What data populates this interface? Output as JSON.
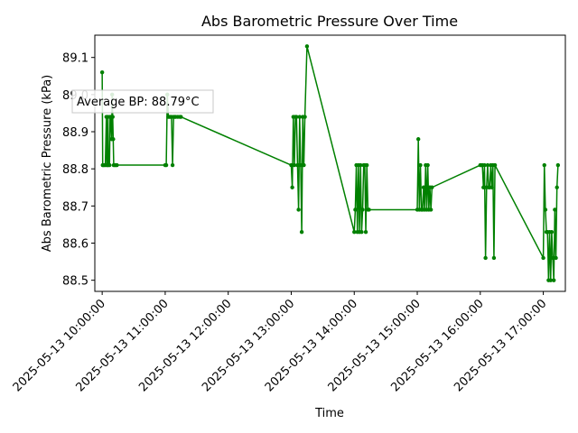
{
  "chart_data": {
    "type": "line",
    "title": "Abs Barometric Pressure Over Time",
    "xlabel": "Time",
    "ylabel": "Abs Barometric Pressure (kPa)",
    "annotation": "Average BP: 88.79°C",
    "x_unit": "time",
    "xlim": [
      "2025-05-13 09:53:00",
      "2025-05-13 17:21:00"
    ],
    "ylim": [
      88.47,
      89.16
    ],
    "x_ticks": [
      "2025-05-13 10:00:00",
      "2025-05-13 11:00:00",
      "2025-05-13 12:00:00",
      "2025-05-13 13:00:00",
      "2025-05-13 14:00:00",
      "2025-05-13 15:00:00",
      "2025-05-13 16:00:00",
      "2025-05-13 17:00:00"
    ],
    "y_ticks": [
      "88.5",
      "88.6",
      "88.7",
      "88.8",
      "88.9",
      "89.0",
      "89.1"
    ],
    "series": [
      {
        "color": "#008000",
        "marker": "circle",
        "x": [
          "2025-05-13 10:00:00",
          "2025-05-13 10:00:30",
          "2025-05-13 10:01:00",
          "2025-05-13 10:02:00",
          "2025-05-13 10:03:00",
          "2025-05-13 10:04:00",
          "2025-05-13 10:04:30",
          "2025-05-13 10:05:00",
          "2025-05-13 10:05:30",
          "2025-05-13 10:06:00",
          "2025-05-13 10:07:00",
          "2025-05-13 10:07:30",
          "2025-05-13 10:08:00",
          "2025-05-13 10:09:00",
          "2025-05-13 10:09:30",
          "2025-05-13 10:10:00",
          "2025-05-13 10:10:30",
          "2025-05-13 10:11:00",
          "2025-05-13 10:12:00",
          "2025-05-13 10:13:00",
          "2025-05-13 10:14:00",
          "2025-05-13 11:00:00",
          "2025-05-13 11:01:00",
          "2025-05-13 11:02:00",
          "2025-05-13 11:03:00",
          "2025-05-13 11:04:00",
          "2025-05-13 11:05:00",
          "2025-05-13 11:06:00",
          "2025-05-13 11:07:00",
          "2025-05-13 11:08:00",
          "2025-05-13 11:09:00",
          "2025-05-13 11:10:00",
          "2025-05-13 11:12:00",
          "2025-05-13 11:14:00",
          "2025-05-13 11:15:00",
          "2025-05-13 13:00:00",
          "2025-05-13 13:01:00",
          "2025-05-13 13:02:00",
          "2025-05-13 13:03:00",
          "2025-05-13 13:04:00",
          "2025-05-13 13:05:00",
          "2025-05-13 13:06:00",
          "2025-05-13 13:07:00",
          "2025-05-13 13:08:00",
          "2025-05-13 13:09:00",
          "2025-05-13 13:10:00",
          "2025-05-13 13:11:00",
          "2025-05-13 13:12:00",
          "2025-05-13 13:13:00",
          "2025-05-13 13:15:00",
          "2025-05-13 14:00:00",
          "2025-05-13 14:01:00",
          "2025-05-13 14:02:00",
          "2025-05-13 14:03:00",
          "2025-05-13 14:04:00",
          "2025-05-13 14:05:00",
          "2025-05-13 14:06:00",
          "2025-05-13 14:07:00",
          "2025-05-13 14:08:00",
          "2025-05-13 14:09:00",
          "2025-05-13 14:10:00",
          "2025-05-13 14:11:00",
          "2025-05-13 14:12:00",
          "2025-05-13 14:13:00",
          "2025-05-13 14:14:00",
          "2025-05-13 15:00:00",
          "2025-05-13 15:01:00",
          "2025-05-13 15:02:00",
          "2025-05-13 15:03:00",
          "2025-05-13 15:04:00",
          "2025-05-13 15:05:00",
          "2025-05-13 15:06:00",
          "2025-05-13 15:07:00",
          "2025-05-13 15:08:00",
          "2025-05-13 15:09:00",
          "2025-05-13 15:10:00",
          "2025-05-13 15:11:00",
          "2025-05-13 15:12:00",
          "2025-05-13 15:13:00",
          "2025-05-13 15:14:00",
          "2025-05-13 16:00:00",
          "2025-05-13 16:01:00",
          "2025-05-13 16:02:00",
          "2025-05-13 16:03:00",
          "2025-05-13 16:04:00",
          "2025-05-13 16:05:00",
          "2025-05-13 16:06:00",
          "2025-05-13 16:07:00",
          "2025-05-13 16:08:00",
          "2025-05-13 16:09:00",
          "2025-05-13 16:10:00",
          "2025-05-13 16:11:00",
          "2025-05-13 16:12:00",
          "2025-05-13 16:13:00",
          "2025-05-13 16:14:00",
          "2025-05-13 17:00:00",
          "2025-05-13 17:01:00",
          "2025-05-13 17:02:00",
          "2025-05-13 17:03:00",
          "2025-05-13 17:04:00",
          "2025-05-13 17:05:00",
          "2025-05-13 17:06:00",
          "2025-05-13 17:07:00",
          "2025-05-13 17:08:00",
          "2025-05-13 17:09:00",
          "2025-05-13 17:10:00",
          "2025-05-13 17:11:00",
          "2025-05-13 17:12:00",
          "2025-05-13 17:13:00"
        ],
        "y": [
          89.06,
          88.81,
          88.81,
          88.81,
          88.81,
          88.94,
          88.81,
          88.81,
          88.94,
          88.81,
          88.81,
          88.94,
          88.94,
          88.88,
          89.0,
          88.94,
          88.88,
          88.81,
          88.81,
          88.81,
          88.81,
          88.81,
          88.81,
          89.0,
          88.94,
          88.94,
          88.94,
          88.94,
          88.81,
          88.94,
          88.94,
          88.94,
          88.94,
          88.94,
          88.94,
          88.81,
          88.75,
          88.94,
          88.81,
          88.94,
          88.94,
          88.81,
          88.69,
          88.94,
          88.81,
          88.63,
          88.94,
          88.81,
          88.94,
          89.13,
          88.63,
          88.69,
          88.81,
          88.63,
          88.81,
          88.63,
          88.81,
          88.63,
          88.69,
          88.81,
          88.81,
          88.63,
          88.81,
          88.69,
          88.69,
          88.69,
          88.88,
          88.69,
          88.81,
          88.69,
          88.69,
          88.75,
          88.69,
          88.81,
          88.69,
          88.81,
          88.69,
          88.75,
          88.69,
          88.75,
          88.81,
          88.81,
          88.81,
          88.75,
          88.81,
          88.56,
          88.75,
          88.81,
          88.75,
          88.75,
          88.81,
          88.75,
          88.81,
          88.56,
          88.81,
          88.56,
          88.81,
          88.69,
          88.63,
          88.63,
          88.5,
          88.63,
          88.5,
          88.63,
          88.56,
          88.5,
          88.69,
          88.56,
          88.75
        ]
      }
    ],
    "extra_last_point": {
      "x": "2025-05-13 17:14:00",
      "y": 88.81
    },
    "grid": false,
    "legend": false
  }
}
